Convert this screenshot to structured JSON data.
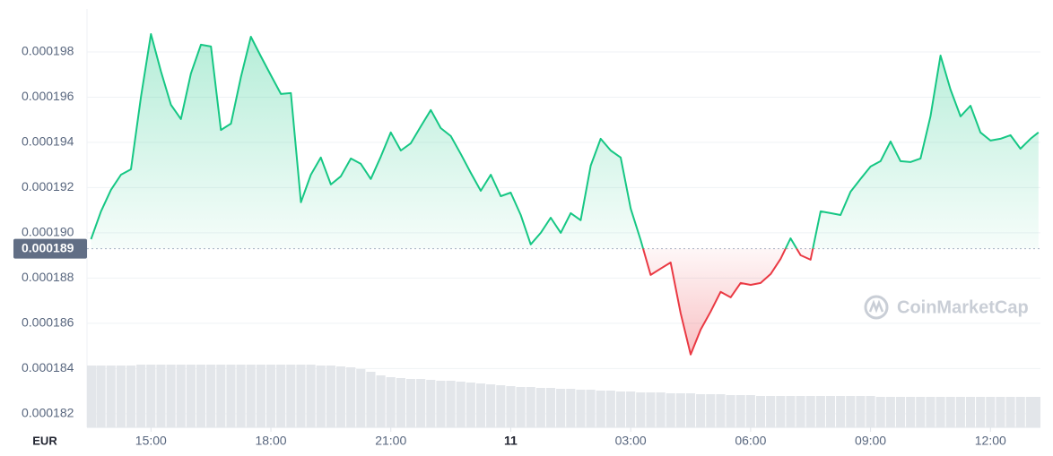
{
  "chart_data": {
    "type": "line",
    "currency": "EUR",
    "watermark": "CoinMarketCap",
    "color_up": "#16c784",
    "color_down": "#ea3943",
    "grid": true,
    "baseline": {
      "value": 0.0001893,
      "label": "0.000189"
    },
    "xlim": [
      13.4,
      37.25
    ],
    "xticks": [
      {
        "value": 15,
        "label": "15:00"
      },
      {
        "value": 18,
        "label": "18:00"
      },
      {
        "value": 21,
        "label": "21:00"
      },
      {
        "value": 24,
        "label": "11"
      },
      {
        "value": 27,
        "label": "03:00"
      },
      {
        "value": 30,
        "label": "06:00"
      },
      {
        "value": 33,
        "label": "09:00"
      },
      {
        "value": 36,
        "label": "12:00"
      }
    ],
    "ylim": [
      0.0001814,
      0.0001999
    ],
    "yticks": [
      0.000182,
      0.000184,
      0.000186,
      0.000188,
      {
        "value": 0.00019,
        "label": "0.000190"
      },
      0.000192,
      0.000194,
      0.000196,
      0.000198
    ],
    "x": [
      13.5,
      13.75,
      14,
      14.25,
      14.5,
      14.75,
      15,
      15.25,
      15.5,
      15.75,
      16,
      16.25,
      16.5,
      16.75,
      17,
      17.25,
      17.5,
      17.75,
      18,
      18.25,
      18.5,
      18.75,
      19,
      19.25,
      19.5,
      19.75,
      20,
      20.25,
      20.5,
      20.75,
      21,
      21.25,
      21.5,
      21.75,
      22,
      22.25,
      22.5,
      22.75,
      23,
      23.25,
      23.5,
      23.75,
      24,
      24.25,
      24.5,
      24.75,
      25,
      25.25,
      25.5,
      25.75,
      26,
      26.25,
      26.5,
      26.75,
      27,
      27.25,
      27.5,
      27.75,
      28,
      28.25,
      28.5,
      28.75,
      29,
      29.25,
      29.5,
      29.75,
      30,
      30.25,
      30.5,
      30.75,
      31,
      31.25,
      31.5,
      31.75,
      32,
      32.25,
      32.5,
      32.75,
      33,
      33.25,
      33.5,
      33.75,
      34,
      34.25,
      34.5,
      34.75,
      35,
      35.25,
      35.5,
      35.75,
      36,
      36.25,
      36.5,
      36.75,
      37,
      37.2
    ],
    "values": [
      0.00018972,
      0.00019095,
      0.0001919,
      0.00019257,
      0.00019281,
      0.00019602,
      0.00019879,
      0.00019713,
      0.00019566,
      0.00019503,
      0.00019705,
      0.00019832,
      0.00019824,
      0.00019455,
      0.00019483,
      0.00019689,
      0.00019867,
      0.0001978,
      0.00019697,
      0.00019614,
      0.00019618,
      0.00019135,
      0.00019257,
      0.00019333,
      0.00019214,
      0.0001925,
      0.00019329,
      0.00019305,
      0.00019238,
      0.00019337,
      0.00019444,
      0.00019364,
      0.00019396,
      0.00019471,
      0.00019543,
      0.00019463,
      0.00019428,
      0.00019349,
      0.00019265,
      0.00019186,
      0.00019257,
      0.00019162,
      0.00019178,
      0.00019079,
      0.00018949,
      0.00019,
      0.00019067,
      0.00019,
      0.00019087,
      0.00019056,
      0.00019297,
      0.00019416,
      0.00019364,
      0.00019333,
      0.00019107,
      0.00018968,
      0.00018814,
      0.00018842,
      0.00018869,
      0.00018644,
      0.00018462,
      0.00018572,
      0.00018652,
      0.00018739,
      0.00018715,
      0.00018778,
      0.0001877,
      0.00018778,
      0.00018818,
      0.00018885,
      0.00018976,
      0.00018901,
      0.00018881,
      0.00019095,
      0.00019087,
      0.00019079,
      0.00019182,
      0.00019238,
      0.00019293,
      0.00019317,
      0.00019404,
      0.00019317,
      0.00019313,
      0.00019329,
      0.00019515,
      0.00019784,
      0.00019634,
      0.00019515,
      0.00019562,
      0.00019444,
      0.00019408,
      0.00019416,
      0.00019432,
      0.00019372,
      0.00019416,
      0.00019444
    ],
    "volume": [
      69,
      69,
      69,
      69,
      69,
      70,
      70,
      70,
      70,
      70,
      70,
      70,
      70,
      70,
      70,
      70,
      70,
      70,
      70,
      70,
      70,
      70,
      70,
      69,
      69,
      68,
      67,
      65,
      62,
      58,
      56,
      55,
      54,
      54,
      53,
      52,
      52,
      51,
      50,
      49,
      48,
      47,
      46,
      45,
      45,
      44,
      44,
      43,
      43,
      42,
      42,
      41,
      41,
      40,
      40,
      39,
      39,
      39,
      38,
      38,
      38,
      37,
      37,
      37,
      36,
      36,
      36,
      35,
      35,
      35,
      35,
      35,
      35,
      35,
      35,
      35,
      35,
      35,
      35,
      34,
      34,
      34,
      34,
      34,
      34,
      34,
      34,
      34,
      34,
      34,
      34,
      34,
      34,
      34,
      34,
      34
    ]
  }
}
